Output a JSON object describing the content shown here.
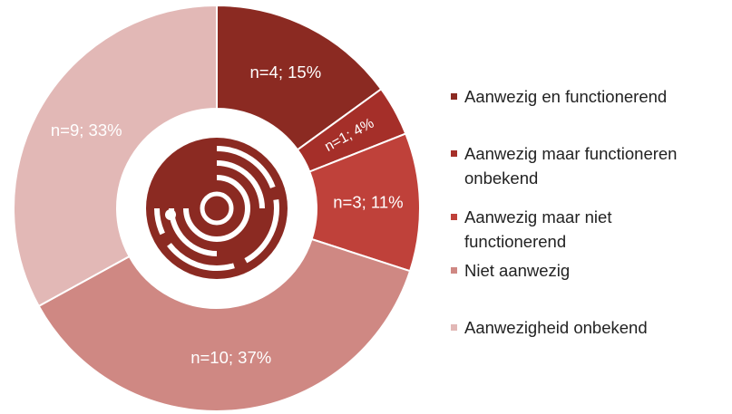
{
  "chart_data": {
    "type": "donut",
    "categories": [
      "Aanwezig en functionerend",
      "Aanwezig maar functioneren onbekend",
      "Aanwezig maar niet functionerend",
      "Niet aanwezig",
      "Aanwezigheid onbekend"
    ],
    "values": [
      15,
      4,
      11,
      37,
      33
    ],
    "value_labels": [
      "n=4; 15%",
      "n=1; 4%",
      "n=3; 11%",
      "n=10; 37%",
      "n=9; 33%"
    ],
    "colors": [
      "#8b2a22",
      "#a52f29",
      "#bf413a",
      "#cf8883",
      "#e2b8b6"
    ],
    "legend": "right"
  }
}
